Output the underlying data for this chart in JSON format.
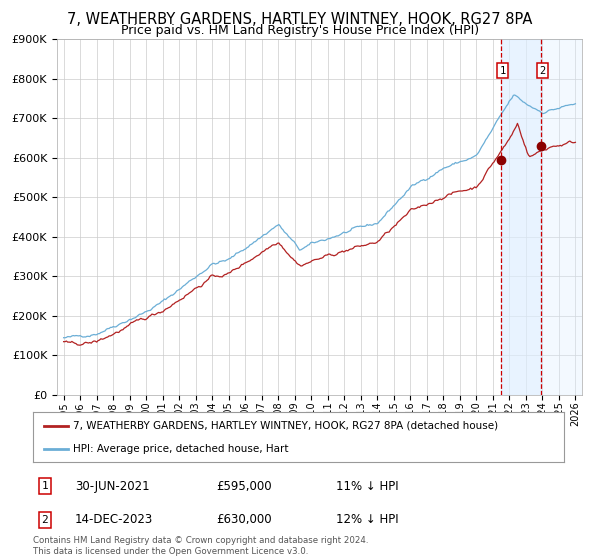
{
  "title_line1": "7, WEATHERBY GARDENS, HARTLEY WINTNEY, HOOK, RG27 8PA",
  "title_line2": "Price paid vs. HM Land Registry's House Price Index (HPI)",
  "legend_line1": "7, WEATHERBY GARDENS, HARTLEY WINTNEY, HOOK, RG27 8PA (detached house)",
  "legend_line2": "HPI: Average price, detached house, Hart",
  "sale1_date": "30-JUN-2021",
  "sale1_price": 595000,
  "sale1_hpi": "11% ↓ HPI",
  "sale2_date": "14-DEC-2023",
  "sale2_price": 630000,
  "sale2_hpi": "12% ↓ HPI",
  "footnote": "Contains HM Land Registry data © Crown copyright and database right 2024.\nThis data is licensed under the Open Government Licence v3.0.",
  "hpi_color": "#6baed6",
  "price_color": "#b22222",
  "sale_marker_color": "#8b0000",
  "vline_color": "#cc0000",
  "shade_color": "#ddeeff",
  "background_color": "#ffffff",
  "grid_color": "#cccccc",
  "ylim": [
    0,
    900000
  ],
  "yticks": [
    0,
    100000,
    200000,
    300000,
    400000,
    500000,
    600000,
    700000,
    800000,
    900000
  ],
  "xlabel_fontsize": 7.0,
  "ylabel_fontsize": 8.0,
  "title_fontsize1": 10.5,
  "title_fontsize2": 9.0,
  "sale1_year": 2021.5,
  "sale2_year": 2023.92
}
